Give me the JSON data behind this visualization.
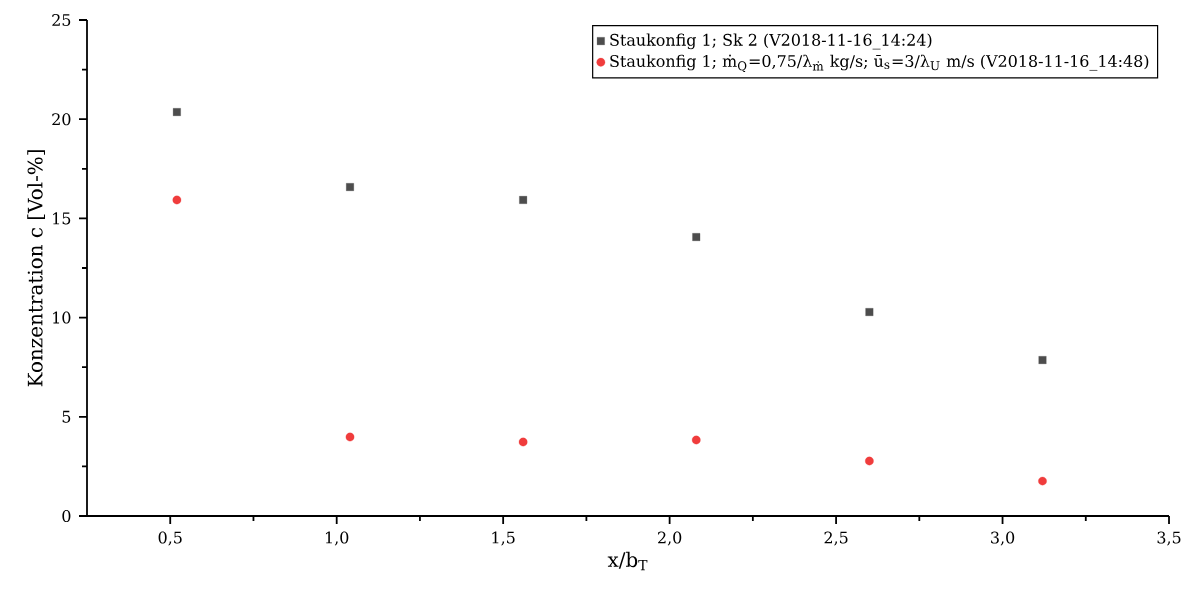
{
  "chart_data": {
    "type": "scatter",
    "xlabel": "x/b$_{T}$",
    "ylabel": "Konzentration c [Vol-%]",
    "series": [
      {
        "name": "Staukonfig 1; Sk 2 (V2018-11-16_14:24)",
        "color": "#4d4d4d",
        "marker": "square",
        "x": [
          0.52,
          1.04,
          1.56,
          2.08,
          2.6,
          3.12
        ],
        "values": [
          20.36,
          16.58,
          15.93,
          14.06,
          10.28,
          7.86
        ]
      },
      {
        "name": "Staukonfig 1; ṁ$_{Q}$=0,75/λ$_{ṁ}$ kg/s; ū$_{s}$=3/λ$_{U}$ m/s (V2018-11-16_14:48)",
        "color": "#f03c3c",
        "marker": "circle",
        "x": [
          0.52,
          1.04,
          1.56,
          2.08,
          2.6,
          3.12
        ],
        "values": [
          15.93,
          3.98,
          3.73,
          3.83,
          2.77,
          1.76
        ]
      }
    ],
    "xlim": [
      0.25,
      3.5
    ],
    "ylim": [
      0,
      25
    ],
    "xticks": [
      {
        "value": 0.5,
        "label": "0,5"
      },
      {
        "value": 1.0,
        "label": "1,0"
      },
      {
        "value": 1.5,
        "label": "1,5"
      },
      {
        "value": 2.0,
        "label": "2,0"
      },
      {
        "value": 2.5,
        "label": "2,5"
      },
      {
        "value": 3.0,
        "label": "3,0"
      },
      {
        "value": 3.5,
        "label": "3,5"
      }
    ],
    "yticks": [
      0,
      5,
      10,
      15,
      20,
      25
    ],
    "legend": "top right",
    "grid": false
  }
}
